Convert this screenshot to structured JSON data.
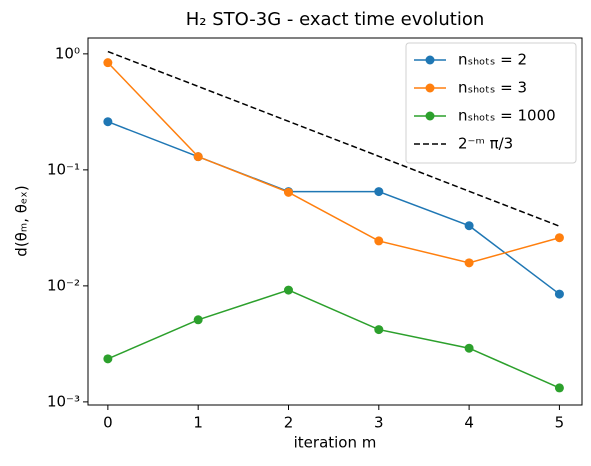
{
  "chart_data": {
    "type": "line",
    "title": "H₂ STO-3G - exact time evolution",
    "x_label": "iteration m",
    "y_label": "d(θₘ, θₑₓ)",
    "x": [
      0,
      1,
      2,
      3,
      4,
      5
    ],
    "xlim": [
      -0.22,
      5.25
    ],
    "xticks": [
      0,
      1,
      2,
      3,
      4,
      5
    ],
    "log_y": true,
    "ylim": [
      0.00094,
      1.37
    ],
    "yticks": [
      {
        "value": 0.001,
        "label": "10⁻³"
      },
      {
        "value": 0.01,
        "label": "10⁻²"
      },
      {
        "value": 0.1,
        "label": "10⁻¹"
      },
      {
        "value": 1,
        "label": "10⁰"
      }
    ],
    "legend": "upper right",
    "series": [
      {
        "name": "nₛₕₒₜₛ = 2",
        "color": "#1f77b4",
        "marker": true,
        "dashed": false,
        "values": [
          0.26,
          0.13,
          0.065,
          0.065,
          0.033,
          0.0085
        ]
      },
      {
        "name": "nₛₕₒₜₛ = 3",
        "color": "#ff7f0e",
        "marker": true,
        "dashed": false,
        "values": [
          0.84,
          0.13,
          0.064,
          0.0244,
          0.0158,
          0.026
        ]
      },
      {
        "name": "nₛₕₒₜₛ = 1000",
        "color": "#2ca02c",
        "marker": true,
        "dashed": false,
        "values": [
          0.00235,
          0.0051,
          0.0092,
          0.0042,
          0.0029,
          0.00132
        ]
      },
      {
        "name": "2⁻ᵐ π/3",
        "color": "#000000",
        "marker": false,
        "dashed": true,
        "values": [
          1.047,
          0.524,
          0.262,
          0.131,
          0.0654,
          0.0327
        ]
      }
    ]
  }
}
